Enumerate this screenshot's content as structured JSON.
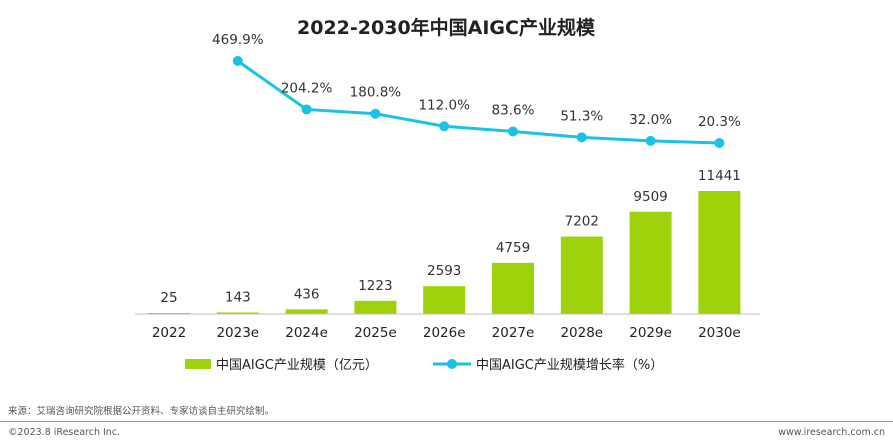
{
  "chart_data": {
    "type": "bar+line",
    "title": "2022-2030年中国AIGC产业规模",
    "categories": [
      "2022",
      "2023e",
      "2024e",
      "2025e",
      "2026e",
      "2027e",
      "2028e",
      "2029e",
      "2030e"
    ],
    "series": [
      {
        "name": "中国AIGC产业规模（亿元）",
        "type": "bar",
        "values": [
          25,
          143,
          436,
          1223,
          2593,
          4759,
          7202,
          9509,
          11441
        ],
        "labels": [
          "25",
          "143",
          "436",
          "1223",
          "2593",
          "4759",
          "7202",
          "9509",
          "11441"
        ],
        "color": "#9fd20a"
      },
      {
        "name": "中国AIGC产业规模增长率（%）",
        "type": "line",
        "values": [
          null,
          469.9,
          204.2,
          180.8,
          112.0,
          83.6,
          51.3,
          32.0,
          20.3
        ],
        "labels": [
          "",
          "469.9%",
          "204.2%",
          "180.8%",
          "112.0%",
          "83.6%",
          "51.3%",
          "32.0%",
          "20.3%"
        ],
        "color": "#19c2e6"
      }
    ],
    "bar_ylim": [
      0,
      11441
    ],
    "line_ylim": [
      20.3,
      469.9
    ],
    "legend_position": "bottom"
  },
  "footer": {
    "source": "来源：艾瑞咨询研究院根据公开资料、专家访谈自主研究绘制。",
    "copyright": "©2023.8 iResearch Inc.",
    "website": "www.iresearch.com.cn"
  }
}
